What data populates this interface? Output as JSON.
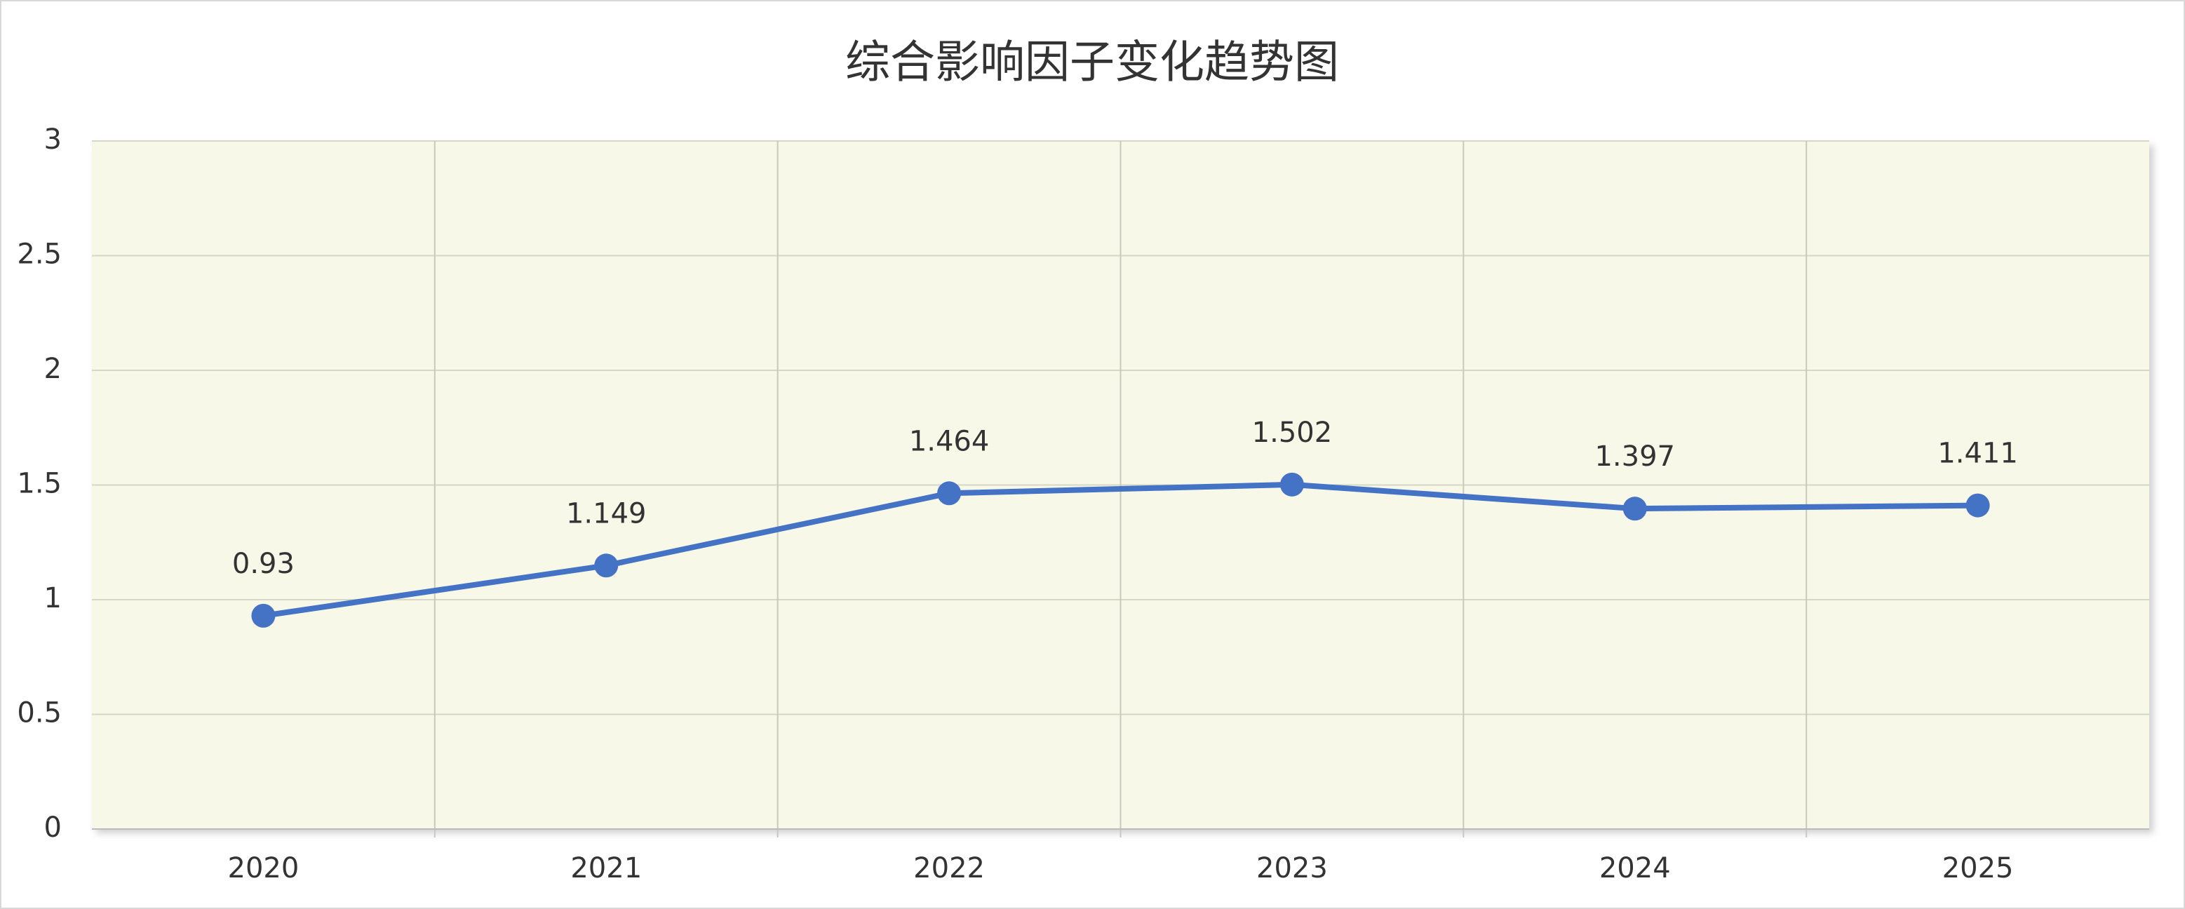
{
  "chart_data": {
    "type": "line",
    "title": "综合影响因子变化趋势图",
    "categories": [
      "2020",
      "2021",
      "2022",
      "2023",
      "2024",
      "2025"
    ],
    "series": [
      {
        "color": "#4472c4",
        "values": [
          0.93,
          1.149,
          1.464,
          1.502,
          1.397,
          1.411
        ]
      }
    ],
    "ylim": [
      0,
      3
    ],
    "yticks": [
      0,
      0.5,
      1,
      1.5,
      2,
      2.5,
      3
    ],
    "grid": true
  }
}
